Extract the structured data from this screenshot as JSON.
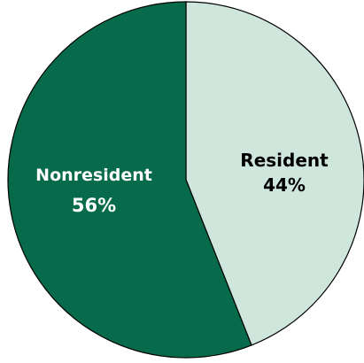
{
  "chart_data": {
    "type": "pie",
    "title": "",
    "slices": [
      {
        "label": "Resident",
        "value": 44,
        "value_label": "44%",
        "color": "#cfe6dc",
        "text_color": "#000000"
      },
      {
        "label": "Nonresident",
        "value": 56,
        "value_label": "56%",
        "color": "#066a4b",
        "text_color": "#ffffff"
      }
    ],
    "start_angle": "12 o'clock",
    "direction": "clockwise",
    "stroke_color": "#000000",
    "legend": "none"
  }
}
